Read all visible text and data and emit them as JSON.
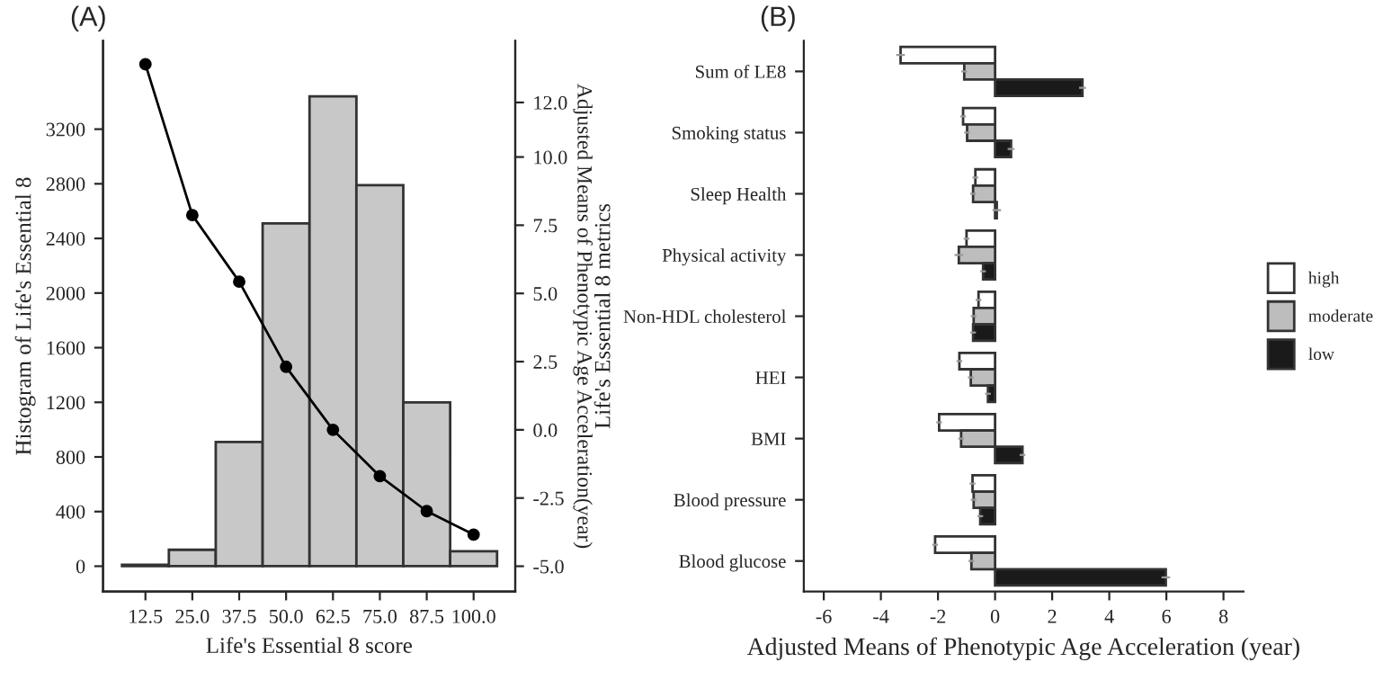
{
  "chart_data": [
    {
      "type": "histogram",
      "title": "(A)",
      "xlabel": "Life's Essential 8 score",
      "ylabel": "Histogram of Life's Essential 8",
      "y2label": "Adjusted Means of Phenotypic Age Acceleration(year)",
      "bins": [
        6.25,
        18.75,
        31.25,
        43.75,
        56.25,
        68.75,
        81.25,
        93.75,
        106.25
      ],
      "values": [
        10,
        120,
        910,
        2510,
        3440,
        2790,
        1200,
        110
      ],
      "color": "#c8c8c8",
      "series": [
        {
          "type": "line",
          "axis": "y2",
          "color": "#000000",
          "marker": "circle",
          "x": [
            12.5,
            25,
            37.5,
            50,
            62.5,
            75,
            87.5,
            100
          ],
          "values": [
            13.4,
            7.87,
            5.43,
            2.31,
            0.0,
            -1.7,
            -2.98,
            -3.84
          ]
        }
      ],
      "xlim": [
        1.2,
        111.1
      ],
      "ylim": [
        -186,
        3847
      ],
      "y2lim": [
        -5.93,
        14.26
      ],
      "xticks": [
        12.5,
        {
          "value": 25,
          "label": "25.0"
        },
        37.5,
        {
          "value": 50,
          "label": "50.0"
        },
        62.5,
        {
          "value": 75,
          "label": "75.0"
        },
        87.5,
        {
          "value": 100,
          "label": "100.0"
        }
      ],
      "yticks": [
        0,
        400,
        800,
        1200,
        1600,
        2000,
        2400,
        2800,
        3200
      ],
      "y2ticks": [
        {
          "value": -5,
          "label": "-5.0"
        },
        -2.5,
        {
          "value": 0,
          "label": "0.0"
        },
        2.5,
        {
          "value": 5,
          "label": "5.0"
        },
        7.5,
        {
          "value": 10,
          "label": "10.0"
        },
        {
          "value": 12,
          "label": "12.0"
        }
      ],
      "grid": false,
      "legend": false
    },
    {
      "type": "bar",
      "orientation": "horizontal",
      "title": "(B)",
      "xlabel": "Adjusted Means of Phenotypic Age Acceleration (year)",
      "ylabel": "Life's Essential 8 metrics",
      "categories": [
        "Sum of LE8",
        "Smoking status",
        "Sleep Health",
        "Physical activity",
        "Non-HDL cholesterol",
        "HEI",
        "BMI",
        "Blood pressure",
        "Blood glucose"
      ],
      "series": [
        {
          "name": "high",
          "color": "#ffffff",
          "values": [
            -3.31,
            -1.12,
            -0.69,
            -1.0,
            -0.58,
            -1.25,
            -1.96,
            -0.79,
            -2.1
          ],
          "errors": [
            0.15,
            0.1,
            0.1,
            0.1,
            0.1,
            0.1,
            0.1,
            0.1,
            0.1
          ]
        },
        {
          "name": "moderate",
          "color": "#bdbdbd",
          "values": [
            -1.08,
            -0.98,
            -0.77,
            -1.27,
            -0.75,
            -0.85,
            -1.19,
            -0.75,
            -0.83
          ],
          "errors": [
            0.1,
            0.1,
            0.1,
            0.15,
            0.1,
            0.1,
            0.1,
            0.1,
            0.1
          ]
        },
        {
          "name": "low",
          "color": "#1a1a1a",
          "values": [
            3.06,
            0.56,
            0.06,
            -0.42,
            -0.77,
            -0.25,
            0.96,
            -0.52,
            5.98
          ],
          "errors": [
            0.12,
            0.12,
            0.15,
            0.1,
            0.1,
            0.1,
            0.1,
            0.1,
            0.15
          ]
        }
      ],
      "xlim": [
        -6.7,
        8.7
      ],
      "xticks": [
        -6,
        -4,
        -2,
        0,
        2,
        4,
        6,
        8
      ],
      "grid": false,
      "legend": "right"
    }
  ]
}
